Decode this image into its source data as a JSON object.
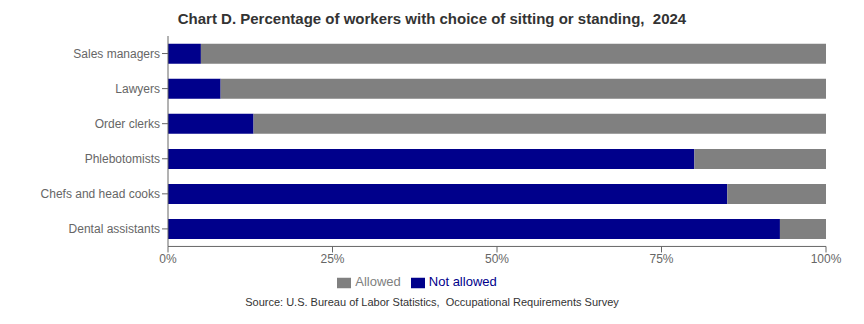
{
  "chart_data": {
    "type": "bar",
    "title": "Chart D. Percentage of workers with choice of sitting or standing,  2024",
    "orientation": "horizontal",
    "stacked": true,
    "categories": [
      "Sales managers",
      "Lawyers",
      "Order clerks",
      "Phlebotomists",
      "Chefs and head cooks",
      "Dental assistants"
    ],
    "series": [
      {
        "name": "Not allowed",
        "color": "#00008B",
        "values": [
          5,
          8,
          13,
          80,
          85,
          93
        ]
      },
      {
        "name": "Allowed",
        "color": "#808080",
        "values": [
          95,
          92,
          87,
          20,
          15,
          7
        ]
      }
    ],
    "xlim": [
      0,
      100
    ],
    "xticks": [
      {
        "value": 0,
        "label": "0%"
      },
      {
        "value": 25,
        "label": "25%"
      },
      {
        "value": 50,
        "label": "50%"
      },
      {
        "value": 75,
        "label": "75%"
      },
      {
        "value": 100,
        "label": "100%"
      }
    ],
    "grid": false,
    "legend": "bottom",
    "annotations": [
      "Source: U.S. Bureau of Labor Statistics,  Occupational Requirements Survey"
    ]
  }
}
